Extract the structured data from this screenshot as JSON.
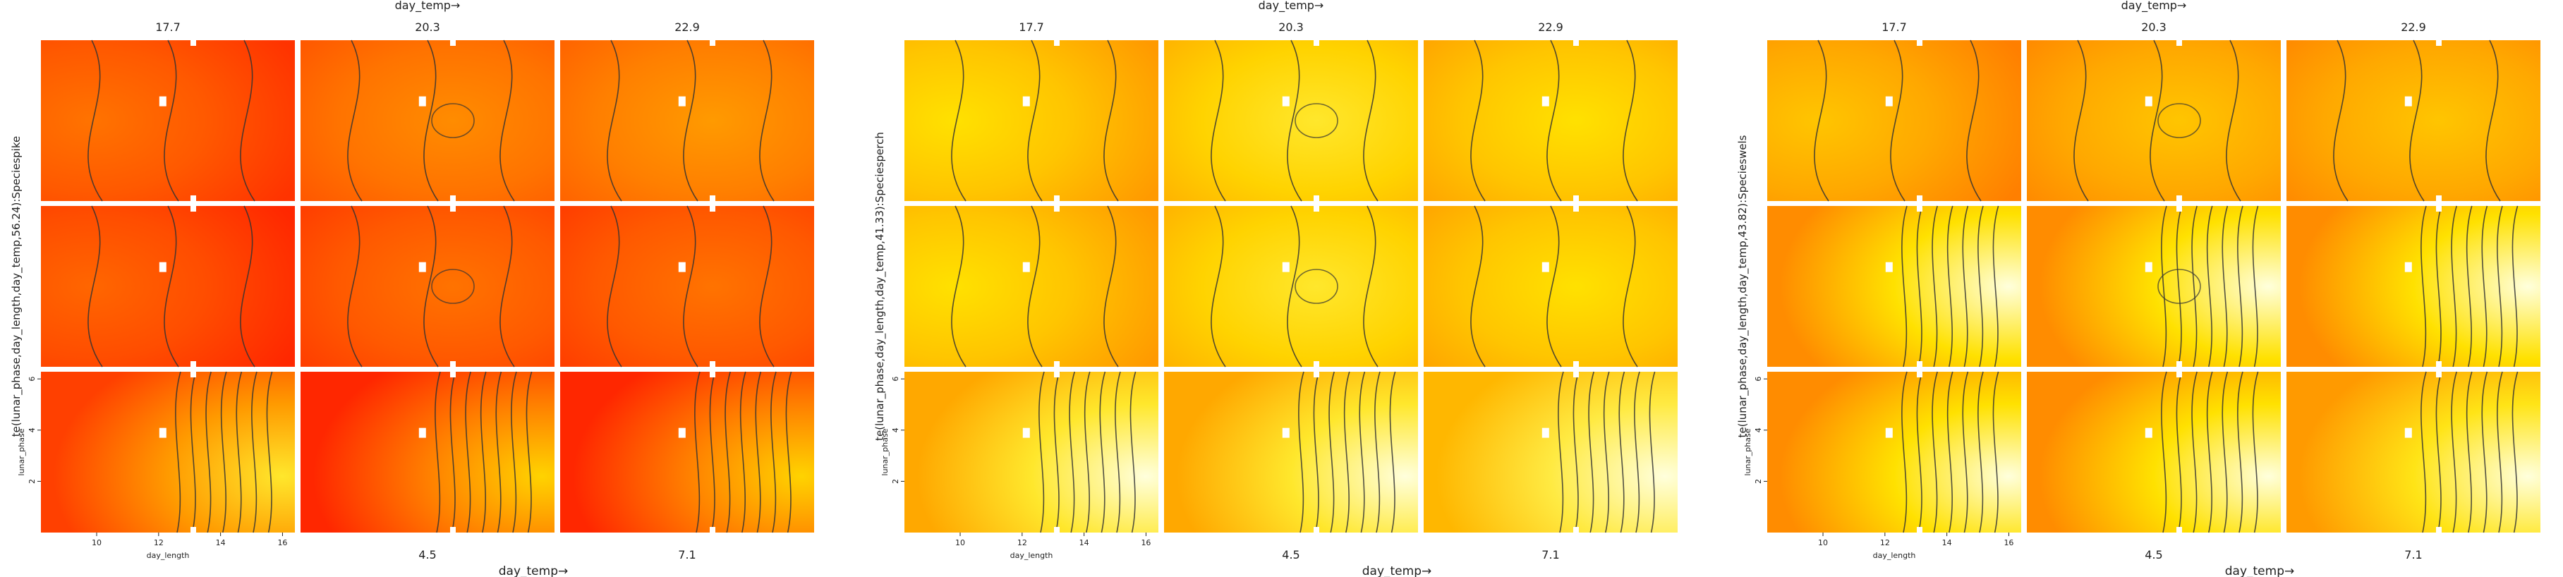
{
  "figure": {
    "background": "#ffffff",
    "colors": {
      "low": "#ff1a00",
      "mid": "#ff9900",
      "high_yellow": "#ffee00",
      "max": "#ffffdd",
      "contour": "#333333",
      "panel_gap": "#ffffff"
    }
  },
  "chart_data": [
    {
      "type": "heatmap",
      "species": "pike",
      "strip_label": "te(lunar_phase,day_length,day_temp,56.24):Speciespike",
      "top_axis_label": "day_temp→",
      "bottom_axis_label": "day_temp→",
      "top_temps": [
        "17.7",
        "20.3",
        "22.9"
      ],
      "bottom_temps": [
        "",
        "4.5",
        "7.1"
      ],
      "ylabel": "lunar_phase",
      "xlabel": "day_length",
      "xticks": [
        "10",
        "12",
        "14",
        "16"
      ],
      "yticks": [
        "2",
        "4",
        "6"
      ],
      "xlim": [
        8.2,
        16.4
      ],
      "ylim": [
        0,
        6.28
      ],
      "panel_fill": [
        [
          0.15,
          0.25,
          0.3
        ],
        [
          0.1,
          0.15,
          0.15
        ],
        [
          0.2,
          0.1,
          0.1
        ]
      ]
    },
    {
      "type": "heatmap",
      "species": "perch",
      "strip_label": "te(lunar_phase,day_length,day_temp,41.33):Speciesperch",
      "top_axis_label": "day_temp→",
      "bottom_axis_label": "day_temp→",
      "top_temps": [
        "17.7",
        "20.3",
        "22.9"
      ],
      "bottom_temps": [
        "",
        "4.5",
        "7.1"
      ],
      "ylabel": "lunar_phase",
      "xlabel": "day_length",
      "xticks": [
        "10",
        "12",
        "14",
        "16"
      ],
      "yticks": [
        "2",
        "4",
        "6"
      ],
      "xlim": [
        8.2,
        16.4
      ],
      "ylim": [
        0,
        6.28
      ],
      "panel_fill": [
        [
          0.55,
          0.6,
          0.55
        ],
        [
          0.55,
          0.6,
          0.55
        ],
        [
          0.6,
          0.6,
          0.65
        ]
      ]
    },
    {
      "type": "heatmap",
      "species": "wels",
      "strip_label": "te(lunar_phase,day_length,day_temp,43.82):Specieswels",
      "top_axis_label": "day_temp→",
      "bottom_axis_label": "day_temp→",
      "top_temps": [
        "17.7",
        "20.3",
        "22.9"
      ],
      "bottom_temps": [
        "",
        "4.5",
        "7.1"
      ],
      "ylabel": "lunar_phase",
      "xlabel": "day_length",
      "xticks": [
        "10",
        "12",
        "14",
        "16"
      ],
      "yticks": [
        "2",
        "4",
        "6"
      ],
      "xlim": [
        8.2,
        16.4
      ],
      "ylim": [
        0,
        6.28
      ],
      "panel_fill": [
        [
          0.45,
          0.45,
          0.45
        ],
        [
          0.5,
          0.5,
          0.5
        ],
        [
          0.5,
          0.5,
          0.55
        ]
      ]
    }
  ]
}
